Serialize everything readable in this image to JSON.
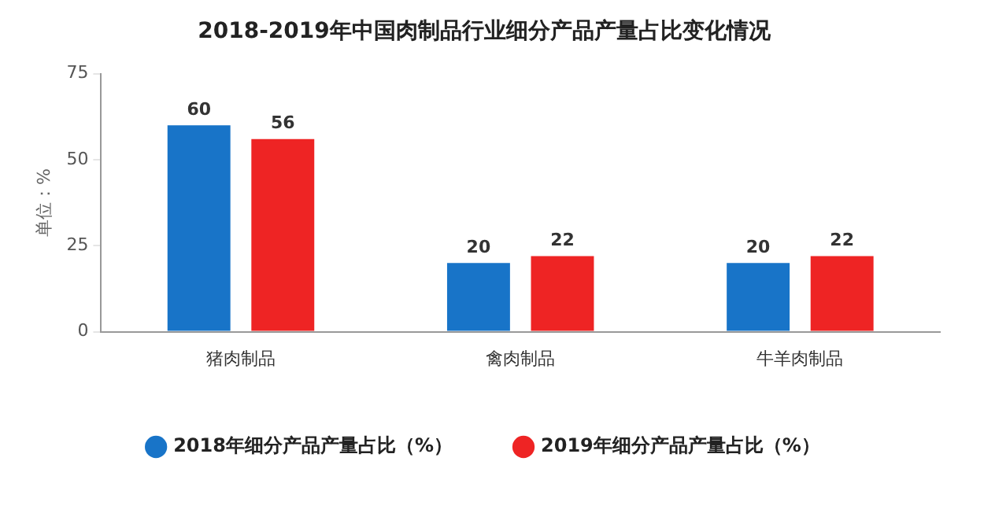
{
  "chart_data": {
    "type": "bar",
    "title": "2018-2019年中国肉制品行业细分产品产量占比变化情况",
    "ylabel": "单位：%",
    "categories": [
      "猪肉制品",
      "禽肉制品",
      "牛羊肉制品"
    ],
    "series": [
      {
        "name": "2018年细分产品产量占比（%）",
        "color": "#1874c8",
        "values": [
          60,
          20,
          20
        ]
      },
      {
        "name": "2019年细分产品产量占比（%）",
        "color": "#ee2424",
        "values": [
          56,
          22,
          22
        ]
      }
    ],
    "ylim": [
      0,
      75
    ],
    "yticks": [
      0,
      25,
      50,
      75
    ],
    "legend": "bottom",
    "data_labels": true
  }
}
